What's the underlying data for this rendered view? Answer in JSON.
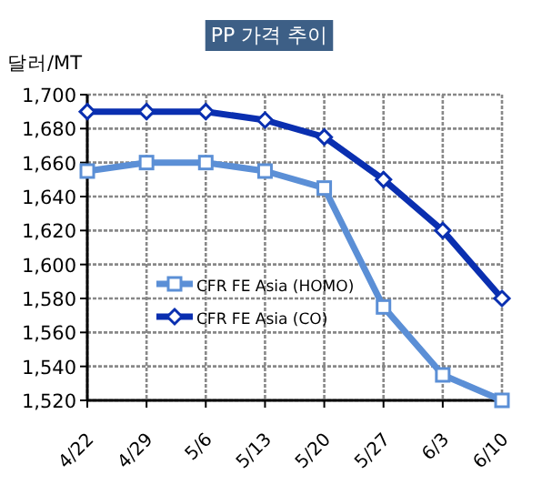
{
  "chart_data": {
    "type": "line",
    "title": "PP 가격 추이",
    "ylabel": "달러/MT",
    "categories": [
      "4/22",
      "4/29",
      "5/6",
      "5/13",
      "5/20",
      "5/27",
      "6/3",
      "6/10"
    ],
    "series": [
      {
        "name": "CFR FE Asia (HOMO)",
        "color": "#5b8fd6",
        "marker": "square",
        "values": [
          1655,
          1660,
          1660,
          1655,
          1645,
          1575,
          1535,
          1520
        ]
      },
      {
        "name": "CFR FE Asia (CO)",
        "color": "#0a2fb0",
        "marker": "diamond",
        "values": [
          1690,
          1690,
          1690,
          1685,
          1675,
          1650,
          1620,
          1580
        ]
      }
    ],
    "ylim": [
      1520,
      1700
    ],
    "yticks": [
      {
        "value": 1520,
        "label": "1,520"
      },
      {
        "value": 1540,
        "label": "1,540"
      },
      {
        "value": 1560,
        "label": "1,560"
      },
      {
        "value": 1580,
        "label": "1,580"
      },
      {
        "value": 1600,
        "label": "1,600"
      },
      {
        "value": 1620,
        "label": "1,620"
      },
      {
        "value": 1640,
        "label": "1,640"
      },
      {
        "value": 1660,
        "label": "1,660"
      },
      {
        "value": 1680,
        "label": "1,680"
      },
      {
        "value": 1700,
        "label": "1,700"
      }
    ],
    "grid": true,
    "legend": "left",
    "line_style": "solid"
  }
}
